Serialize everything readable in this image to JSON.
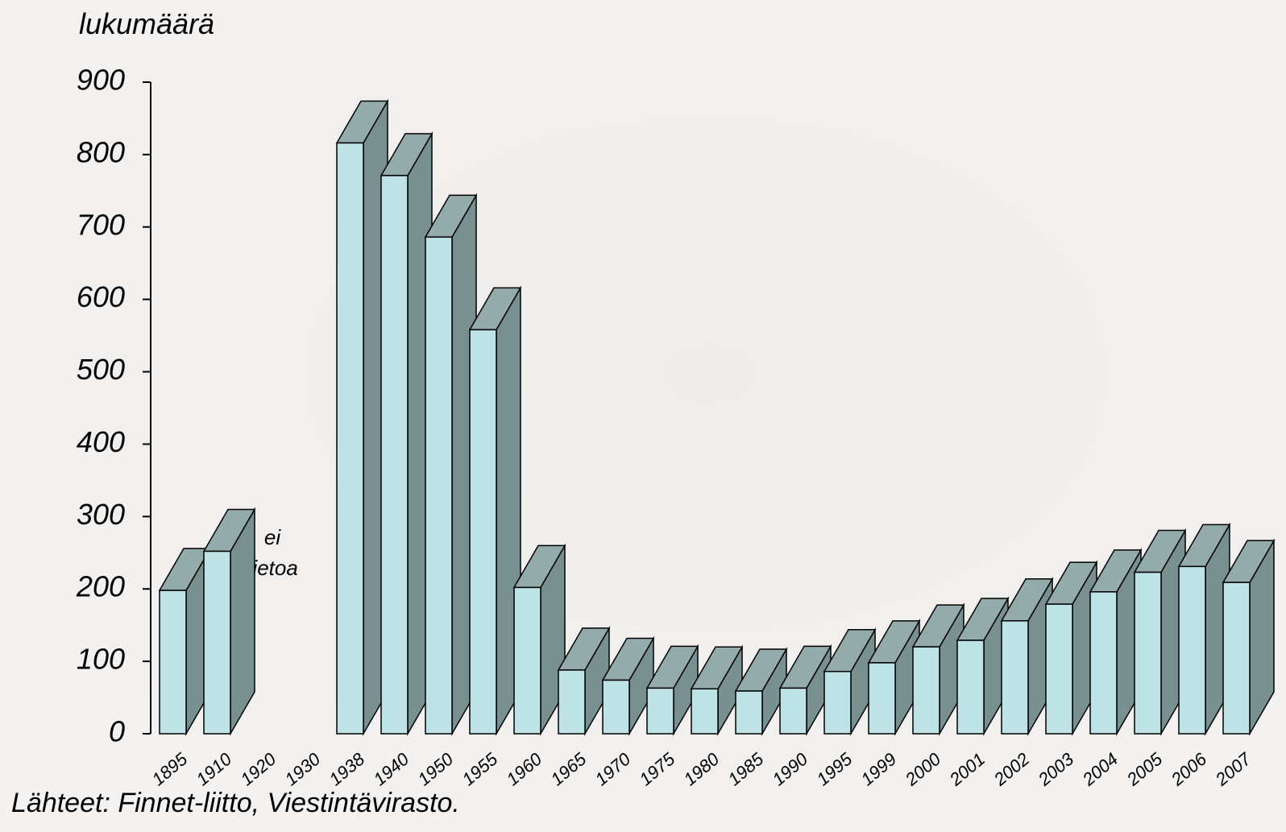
{
  "chart_data": {
    "type": "bar3d",
    "y_label": "lukumäärä",
    "source": "Lähteet: Finnet-liitto, Viestintävirasto.",
    "annotation": [
      "ei",
      "tietoa"
    ],
    "categories": [
      "1895",
      "1910",
      "1920",
      "1930",
      "1938",
      "1940",
      "1950",
      "1955",
      "1960",
      "1965",
      "1970",
      "1975",
      "1980",
      "1985",
      "1990",
      "1995",
      "1999",
      "2000",
      "2001",
      "2002",
      "2003",
      "2004",
      "2005",
      "2006",
      "2007"
    ],
    "values": [
      198,
      252,
      null,
      null,
      816,
      771,
      686,
      558,
      202,
      88,
      74,
      63,
      62,
      59,
      63,
      86,
      98,
      120,
      129,
      156,
      179,
      196,
      223,
      231,
      209
    ],
    "colors": {
      "front": "#bde3e6",
      "side": "#78908f",
      "top": "#93abab"
    },
    "ylim": [
      0,
      900
    ],
    "yticks": [
      0,
      100,
      200,
      300,
      400,
      500,
      600,
      700,
      800,
      900
    ]
  }
}
